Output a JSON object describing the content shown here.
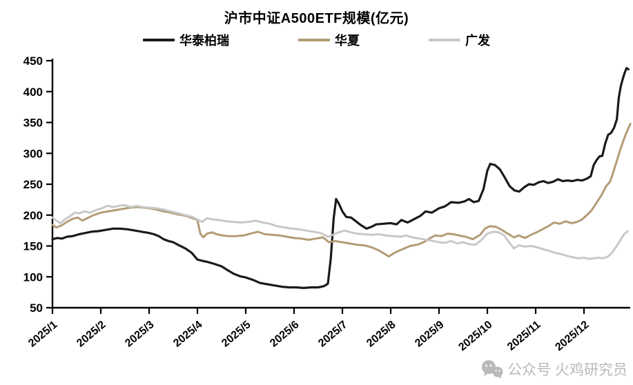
{
  "page": {
    "background": "#ffffff"
  },
  "watermark": {
    "icon": "wechat-icon",
    "text": "公众号 火鸡研究员",
    "color": "#b9b9b9"
  },
  "chart_data": {
    "type": "line",
    "title": "沪市中证A500ETF规模(亿元)",
    "legend_position": "top",
    "grid": "off",
    "x_unit": "month_index_from_2025_1",
    "y_axis": {
      "min": 50,
      "max": 450,
      "step": 50,
      "ticks": [
        450,
        400,
        350,
        300,
        250,
        200,
        150,
        100,
        50
      ]
    },
    "x_axis": {
      "labels": [
        "2025/1",
        "2025/2",
        "2025/3",
        "2025/4",
        "2025/5",
        "2025/6",
        "2025/7",
        "2025/8",
        "2025/9",
        "2025/10",
        "2025/11",
        "2025/12"
      ]
    },
    "series": [
      {
        "name": "华泰柏瑞",
        "color": "#1a1a1a",
        "stroke_width": 3.2,
        "points": [
          [
            0,
            161
          ],
          [
            0.1,
            163
          ],
          [
            0.2,
            162
          ],
          [
            0.3,
            165
          ],
          [
            0.42,
            166
          ],
          [
            0.55,
            169
          ],
          [
            0.68,
            171
          ],
          [
            0.8,
            173
          ],
          [
            0.95,
            174
          ],
          [
            1.1,
            176
          ],
          [
            1.25,
            178
          ],
          [
            1.4,
            178
          ],
          [
            1.55,
            177
          ],
          [
            1.7,
            175
          ],
          [
            1.85,
            173
          ],
          [
            2,
            171
          ],
          [
            2.1,
            169
          ],
          [
            2.2,
            166
          ],
          [
            2.3,
            161
          ],
          [
            2.4,
            158
          ],
          [
            2.5,
            156
          ],
          [
            2.62,
            151
          ],
          [
            2.75,
            146
          ],
          [
            2.88,
            139
          ],
          [
            3,
            128
          ],
          [
            3.1,
            126
          ],
          [
            3.22,
            124
          ],
          [
            3.35,
            121
          ],
          [
            3.5,
            117
          ],
          [
            3.62,
            111
          ],
          [
            3.75,
            105
          ],
          [
            3.88,
            101
          ],
          [
            4,
            99
          ],
          [
            4.15,
            95
          ],
          [
            4.3,
            90
          ],
          [
            4.45,
            88
          ],
          [
            4.6,
            86
          ],
          [
            4.75,
            84
          ],
          [
            4.9,
            83
          ],
          [
            5.05,
            83
          ],
          [
            5.2,
            82
          ],
          [
            5.35,
            83
          ],
          [
            5.5,
            83
          ],
          [
            5.62,
            85
          ],
          [
            5.7,
            89
          ],
          [
            5.76,
            130
          ],
          [
            5.82,
            195
          ],
          [
            5.87,
            226
          ],
          [
            5.93,
            218
          ],
          [
            6,
            206
          ],
          [
            6.08,
            197
          ],
          [
            6.18,
            196
          ],
          [
            6.28,
            190
          ],
          [
            6.38,
            184
          ],
          [
            6.5,
            178
          ],
          [
            6.6,
            181
          ],
          [
            6.7,
            185
          ],
          [
            6.85,
            186
          ],
          [
            7,
            187
          ],
          [
            7.12,
            185
          ],
          [
            7.22,
            192
          ],
          [
            7.35,
            188
          ],
          [
            7.5,
            194
          ],
          [
            7.62,
            199
          ],
          [
            7.72,
            206
          ],
          [
            7.85,
            204
          ],
          [
            8,
            211
          ],
          [
            8.12,
            214
          ],
          [
            8.25,
            221
          ],
          [
            8.4,
            220
          ],
          [
            8.52,
            222
          ],
          [
            8.62,
            226
          ],
          [
            8.72,
            221
          ],
          [
            8.82,
            223
          ],
          [
            8.92,
            242
          ],
          [
            9,
            272
          ],
          [
            9.06,
            283
          ],
          [
            9.16,
            281
          ],
          [
            9.26,
            274
          ],
          [
            9.36,
            261
          ],
          [
            9.46,
            247
          ],
          [
            9.56,
            240
          ],
          [
            9.66,
            238
          ],
          [
            9.76,
            245
          ],
          [
            9.86,
            250
          ],
          [
            9.96,
            249
          ],
          [
            10.06,
            253
          ],
          [
            10.16,
            255
          ],
          [
            10.26,
            252
          ],
          [
            10.36,
            254
          ],
          [
            10.46,
            258
          ],
          [
            10.56,
            255
          ],
          [
            10.66,
            256
          ],
          [
            10.76,
            255
          ],
          [
            10.86,
            257
          ],
          [
            10.96,
            256
          ],
          [
            11.06,
            259
          ],
          [
            11.14,
            263
          ],
          [
            11.2,
            281
          ],
          [
            11.26,
            289
          ],
          [
            11.32,
            295
          ],
          [
            11.38,
            296
          ],
          [
            11.44,
            316
          ],
          [
            11.5,
            330
          ],
          [
            11.56,
            333
          ],
          [
            11.62,
            341
          ],
          [
            11.68,
            355
          ],
          [
            11.72,
            390
          ],
          [
            11.76,
            408
          ],
          [
            11.8,
            420
          ],
          [
            11.84,
            430
          ],
          [
            11.88,
            438
          ],
          [
            11.92,
            436
          ]
        ]
      },
      {
        "name": "华夏",
        "color": "#b29c75",
        "stroke_width": 3,
        "points": [
          [
            0,
            184
          ],
          [
            0.08,
            180
          ],
          [
            0.18,
            183
          ],
          [
            0.3,
            189
          ],
          [
            0.42,
            194
          ],
          [
            0.52,
            196
          ],
          [
            0.62,
            191
          ],
          [
            0.72,
            195
          ],
          [
            0.85,
            200
          ],
          [
            1,
            204
          ],
          [
            1.15,
            206
          ],
          [
            1.3,
            208
          ],
          [
            1.45,
            210
          ],
          [
            1.6,
            212
          ],
          [
            1.75,
            213
          ],
          [
            1.9,
            212
          ],
          [
            2.02,
            211
          ],
          [
            2.15,
            209
          ],
          [
            2.3,
            206
          ],
          [
            2.45,
            204
          ],
          [
            2.6,
            201
          ],
          [
            2.75,
            199
          ],
          [
            2.9,
            195
          ],
          [
            3,
            192
          ],
          [
            3.06,
            170
          ],
          [
            3.12,
            164
          ],
          [
            3.2,
            170
          ],
          [
            3.3,
            172
          ],
          [
            3.4,
            169
          ],
          [
            3.52,
            167
          ],
          [
            3.65,
            166
          ],
          [
            3.8,
            166
          ],
          [
            3.95,
            167
          ],
          [
            4.1,
            170
          ],
          [
            4.25,
            173
          ],
          [
            4.4,
            169
          ],
          [
            4.55,
            168
          ],
          [
            4.7,
            167
          ],
          [
            4.85,
            165
          ],
          [
            5,
            163
          ],
          [
            5.15,
            162
          ],
          [
            5.3,
            160
          ],
          [
            5.45,
            162
          ],
          [
            5.6,
            164
          ],
          [
            5.72,
            156
          ],
          [
            5.85,
            158
          ],
          [
            6,
            156
          ],
          [
            6.15,
            154
          ],
          [
            6.3,
            152
          ],
          [
            6.45,
            151
          ],
          [
            6.6,
            148
          ],
          [
            6.75,
            143
          ],
          [
            6.88,
            137
          ],
          [
            6.96,
            133
          ],
          [
            7.06,
            138
          ],
          [
            7.16,
            142
          ],
          [
            7.28,
            146
          ],
          [
            7.4,
            150
          ],
          [
            7.55,
            152
          ],
          [
            7.68,
            156
          ],
          [
            7.8,
            162
          ],
          [
            7.92,
            167
          ],
          [
            8.05,
            166
          ],
          [
            8.18,
            170
          ],
          [
            8.3,
            169
          ],
          [
            8.42,
            167
          ],
          [
            8.55,
            165
          ],
          [
            8.7,
            161
          ],
          [
            8.85,
            168
          ],
          [
            8.95,
            178
          ],
          [
            9.05,
            182
          ],
          [
            9.18,
            181
          ],
          [
            9.3,
            176
          ],
          [
            9.42,
            170
          ],
          [
            9.55,
            164
          ],
          [
            9.65,
            167
          ],
          [
            9.78,
            163
          ],
          [
            9.9,
            168
          ],
          [
            10.02,
            172
          ],
          [
            10.14,
            177
          ],
          [
            10.26,
            182
          ],
          [
            10.38,
            188
          ],
          [
            10.5,
            186
          ],
          [
            10.62,
            190
          ],
          [
            10.74,
            187
          ],
          [
            10.86,
            189
          ],
          [
            10.96,
            193
          ],
          [
            11.06,
            200
          ],
          [
            11.16,
            208
          ],
          [
            11.26,
            220
          ],
          [
            11.36,
            232
          ],
          [
            11.46,
            247
          ],
          [
            11.54,
            254
          ],
          [
            11.6,
            268
          ],
          [
            11.68,
            288
          ],
          [
            11.76,
            308
          ],
          [
            11.84,
            326
          ],
          [
            11.92,
            341
          ],
          [
            11.96,
            348
          ]
        ]
      },
      {
        "name": "广发",
        "color": "#c8c8c8",
        "stroke_width": 3,
        "points": [
          [
            0,
            196
          ],
          [
            0.08,
            191
          ],
          [
            0.16,
            187
          ],
          [
            0.26,
            193
          ],
          [
            0.36,
            198
          ],
          [
            0.46,
            204
          ],
          [
            0.56,
            203
          ],
          [
            0.66,
            206
          ],
          [
            0.78,
            204
          ],
          [
            0.9,
            208
          ],
          [
            1.02,
            211
          ],
          [
            1.14,
            215
          ],
          [
            1.26,
            213
          ],
          [
            1.38,
            215
          ],
          [
            1.5,
            216
          ],
          [
            1.62,
            213
          ],
          [
            1.74,
            215
          ],
          [
            1.86,
            213
          ],
          [
            2,
            212
          ],
          [
            2.15,
            211
          ],
          [
            2.3,
            209
          ],
          [
            2.45,
            206
          ],
          [
            2.6,
            203
          ],
          [
            2.75,
            200
          ],
          [
            2.9,
            197
          ],
          [
            3.02,
            192
          ],
          [
            3.1,
            189
          ],
          [
            3.2,
            195
          ],
          [
            3.32,
            193
          ],
          [
            3.45,
            192
          ],
          [
            3.6,
            190
          ],
          [
            3.75,
            189
          ],
          [
            3.9,
            188
          ],
          [
            4.05,
            189
          ],
          [
            4.2,
            191
          ],
          [
            4.35,
            188
          ],
          [
            4.5,
            186
          ],
          [
            4.65,
            182
          ],
          [
            4.8,
            180
          ],
          [
            4.95,
            178
          ],
          [
            5.1,
            177
          ],
          [
            5.25,
            175
          ],
          [
            5.4,
            173
          ],
          [
            5.55,
            171
          ],
          [
            5.7,
            165
          ],
          [
            5.8,
            168
          ],
          [
            5.92,
            172
          ],
          [
            6.05,
            175
          ],
          [
            6.18,
            172
          ],
          [
            6.3,
            170
          ],
          [
            6.45,
            169
          ],
          [
            6.6,
            168
          ],
          [
            6.75,
            169
          ],
          [
            6.9,
            167
          ],
          [
            7.05,
            166
          ],
          [
            7.2,
            165
          ],
          [
            7.32,
            167
          ],
          [
            7.45,
            164
          ],
          [
            7.6,
            162
          ],
          [
            7.75,
            160
          ],
          [
            7.88,
            158
          ],
          [
            8,
            156
          ],
          [
            8.12,
            155
          ],
          [
            8.25,
            158
          ],
          [
            8.38,
            154
          ],
          [
            8.5,
            156
          ],
          [
            8.62,
            153
          ],
          [
            8.75,
            152
          ],
          [
            8.88,
            160
          ],
          [
            9,
            170
          ],
          [
            9.12,
            173
          ],
          [
            9.24,
            172
          ],
          [
            9.35,
            167
          ],
          [
            9.45,
            156
          ],
          [
            9.55,
            146
          ],
          [
            9.65,
            151
          ],
          [
            9.78,
            149
          ],
          [
            9.9,
            150
          ],
          [
            10.02,
            148
          ],
          [
            10.15,
            145
          ],
          [
            10.28,
            142
          ],
          [
            10.4,
            139
          ],
          [
            10.52,
            137
          ],
          [
            10.64,
            134
          ],
          [
            10.76,
            132
          ],
          [
            10.88,
            130
          ],
          [
            11,
            131
          ],
          [
            11.1,
            129
          ],
          [
            11.2,
            130
          ],
          [
            11.3,
            131
          ],
          [
            11.4,
            130
          ],
          [
            11.5,
            133
          ],
          [
            11.58,
            139
          ],
          [
            11.66,
            148
          ],
          [
            11.74,
            158
          ],
          [
            11.82,
            168
          ],
          [
            11.9,
            174
          ]
        ]
      }
    ]
  }
}
